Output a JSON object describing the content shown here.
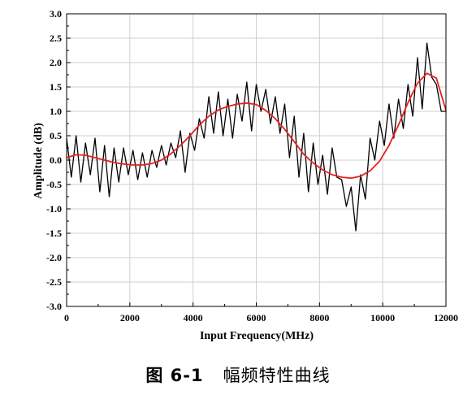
{
  "chart_data": {
    "type": "line",
    "xlabel": "Input Frequency(MHz)",
    "ylabel": "Amplitude (dB)",
    "xlim": [
      0,
      12000
    ],
    "ylim": [
      -3.0,
      3.0
    ],
    "grid": true,
    "x_ticks": [
      0,
      2000,
      4000,
      6000,
      8000,
      10000,
      12000
    ],
    "x_tick_labels": [
      "0",
      "2000",
      "4000",
      "6000",
      "8000",
      "10000",
      "12000"
    ],
    "y_ticks": [
      -3.0,
      -2.5,
      -2.0,
      -1.5,
      -1.0,
      -0.5,
      0.0,
      0.5,
      1.0,
      1.5,
      2.0,
      2.5,
      3.0
    ],
    "y_tick_labels": [
      "-3.0",
      "-2.5",
      "-2.0",
      "-1.5",
      "-1.0",
      "-0.5",
      "0.0",
      "0.5",
      "1.0",
      "1.5",
      "2.0",
      "2.5",
      "3.0"
    ],
    "series": [
      {
        "color": "#000000",
        "x": [
          0,
          150,
          300,
          450,
          600,
          750,
          900,
          1050,
          1200,
          1350,
          1500,
          1650,
          1800,
          1950,
          2100,
          2250,
          2400,
          2550,
          2700,
          2850,
          3000,
          3150,
          3300,
          3450,
          3600,
          3750,
          3900,
          4050,
          4200,
          4350,
          4500,
          4650,
          4800,
          4950,
          5100,
          5250,
          5400,
          5550,
          5700,
          5850,
          6000,
          6150,
          6300,
          6450,
          6600,
          6750,
          6900,
          7050,
          7200,
          7350,
          7500,
          7650,
          7800,
          7950,
          8100,
          8250,
          8400,
          8550,
          8700,
          8850,
          9000,
          9150,
          9300,
          9450,
          9600,
          9750,
          9900,
          10050,
          10200,
          10350,
          10500,
          10650,
          10800,
          10950,
          11100,
          11250,
          11400,
          11550,
          11700,
          11850,
          12000
        ],
        "y": [
          0.45,
          -0.35,
          0.5,
          -0.45,
          0.35,
          -0.3,
          0.45,
          -0.65,
          0.3,
          -0.75,
          0.25,
          -0.45,
          0.25,
          -0.3,
          0.2,
          -0.4,
          0.15,
          -0.35,
          0.2,
          -0.15,
          0.3,
          -0.1,
          0.35,
          0.05,
          0.6,
          -0.25,
          0.55,
          0.2,
          0.85,
          0.45,
          1.3,
          0.55,
          1.4,
          0.5,
          1.25,
          0.45,
          1.35,
          0.8,
          1.6,
          0.6,
          1.55,
          1.0,
          1.45,
          0.75,
          1.3,
          0.55,
          1.15,
          0.05,
          0.9,
          -0.35,
          0.55,
          -0.65,
          0.35,
          -0.5,
          0.1,
          -0.7,
          0.25,
          -0.35,
          -0.4,
          -0.95,
          -0.55,
          -1.45,
          -0.3,
          -0.8,
          0.45,
          0.0,
          0.8,
          0.3,
          1.15,
          0.45,
          1.25,
          0.65,
          1.55,
          0.9,
          2.1,
          1.05,
          2.4,
          1.7,
          1.55,
          1.0,
          1.0
        ]
      },
      {
        "color": "#e8201e",
        "x": [
          0,
          300,
          600,
          900,
          1200,
          1500,
          1800,
          2100,
          2400,
          2700,
          3000,
          3300,
          3600,
          3900,
          4200,
          4500,
          4800,
          5100,
          5400,
          5700,
          6000,
          6300,
          6600,
          6900,
          7200,
          7500,
          7800,
          8100,
          8400,
          8700,
          9000,
          9300,
          9600,
          9900,
          10200,
          10500,
          10800,
          11100,
          11400,
          11700,
          12000
        ],
        "y": [
          0.05,
          0.11,
          0.1,
          0.05,
          0.0,
          -0.05,
          -0.08,
          -0.1,
          -0.1,
          -0.07,
          0.0,
          0.13,
          0.3,
          0.5,
          0.72,
          0.9,
          1.03,
          1.1,
          1.15,
          1.17,
          1.14,
          1.02,
          0.85,
          0.63,
          0.38,
          0.12,
          -0.06,
          -0.2,
          -0.3,
          -0.35,
          -0.37,
          -0.33,
          -0.22,
          -0.02,
          0.3,
          0.72,
          1.18,
          1.58,
          1.78,
          1.68,
          1.02
        ]
      }
    ]
  },
  "caption": {
    "figure_number": "图 6-1",
    "text": "幅频特性曲线"
  }
}
